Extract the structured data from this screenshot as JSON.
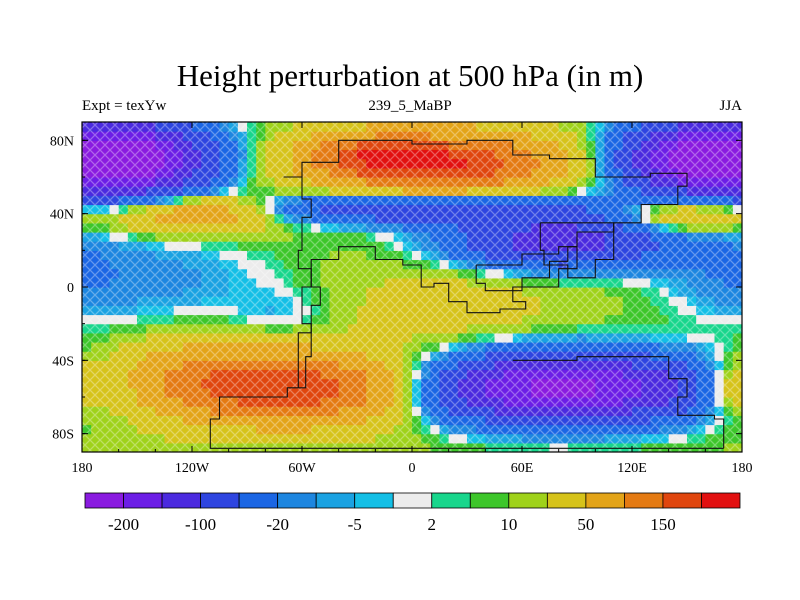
{
  "figure": {
    "title": "Height perturbation at 500 hPa (in m)",
    "left_label": "Expt = texYw",
    "center_label": "239_5_MaBP",
    "right_label": "JJA"
  },
  "axes": {
    "x_range": [
      -180,
      180
    ],
    "y_range": [
      -90,
      90
    ],
    "x_ticks": [
      {
        "value": -180,
        "label": "180"
      },
      {
        "value": -120,
        "label": "120W"
      },
      {
        "value": -60,
        "label": "60W"
      },
      {
        "value": 0,
        "label": "0"
      },
      {
        "value": 60,
        "label": "60E"
      },
      {
        "value": 120,
        "label": "120E"
      },
      {
        "value": 180,
        "label": "180"
      }
    ],
    "y_ticks": [
      {
        "value": 80,
        "label": "80N"
      },
      {
        "value": 40,
        "label": "40N"
      },
      {
        "value": 0,
        "label": "0"
      },
      {
        "value": -40,
        "label": "40S"
      },
      {
        "value": -80,
        "label": "80S"
      }
    ]
  },
  "colorbar": {
    "colors": [
      "#8a1be0",
      "#6c1ee6",
      "#4b2adf",
      "#2e45e0",
      "#1b66e4",
      "#1d86e0",
      "#1aa2e2",
      "#14bfe6",
      "#ececec",
      "#18d68c",
      "#3dc62a",
      "#9fd21a",
      "#d6c31a",
      "#e3a418",
      "#e47a12",
      "#e0460e",
      "#e21010"
    ],
    "labels": [
      {
        "after_box": 1,
        "text": "-200"
      },
      {
        "after_box": 3,
        "text": "-100"
      },
      {
        "after_box": 5,
        "text": "-20"
      },
      {
        "after_box": 7,
        "text": "-5"
      },
      {
        "after_box": 9,
        "text": "2"
      },
      {
        "after_box": 11,
        "text": "10"
      },
      {
        "after_box": 13,
        "text": "50"
      },
      {
        "after_box": 15,
        "text": "150"
      }
    ]
  },
  "field": {
    "units": "m",
    "background_value": 12,
    "anomalies": [
      {
        "lon": -150,
        "lat": 70,
        "amp": -250,
        "slon": 28,
        "slat": 14
      },
      {
        "lon": 155,
        "lat": 70,
        "amp": -250,
        "slon": 28,
        "slat": 14
      },
      {
        "lon": 15,
        "lat": 68,
        "amp": 200,
        "slon": 42,
        "slat": 11
      },
      {
        "lon": -30,
        "lat": 72,
        "amp": 80,
        "slon": 20,
        "slat": 8
      },
      {
        "lon": -120,
        "lat": 40,
        "amp": 90,
        "slon": 28,
        "slat": 7
      },
      {
        "lon": 150,
        "lat": 40,
        "amp": 70,
        "slon": 25,
        "slat": 7
      },
      {
        "lon": 10,
        "lat": 43,
        "amp": -110,
        "slon": 60,
        "slat": 6
      },
      {
        "lon": 80,
        "lat": 25,
        "amp": -140,
        "slon": 40,
        "slat": 10
      },
      {
        "lon": -140,
        "lat": 5,
        "amp": -25,
        "slon": 45,
        "slat": 18
      },
      {
        "lon": 170,
        "lat": 10,
        "amp": -20,
        "slon": 25,
        "slat": 18
      },
      {
        "lon": -70,
        "lat": -15,
        "amp": -15,
        "slon": 20,
        "slat": 10
      },
      {
        "lon": -60,
        "lat": -55,
        "amp": 180,
        "slon": 45,
        "slat": 13
      },
      {
        "lon": -120,
        "lat": -50,
        "amp": 60,
        "slon": 30,
        "slat": 14
      },
      {
        "lon": 80,
        "lat": -55,
        "amp": -230,
        "slon": 55,
        "slat": 13
      },
      {
        "lon": 175,
        "lat": -55,
        "amp": 60,
        "slon": 12,
        "slat": 10
      },
      {
        "lon": 20,
        "lat": -10,
        "amp": 20,
        "slon": 40,
        "slat": 15
      }
    ]
  },
  "coastlines": [
    {
      "name": "north-landmass",
      "points": [
        [
          -70,
          60
        ],
        [
          -60,
          68
        ],
        [
          -40,
          80
        ],
        [
          -15,
          80
        ],
        [
          0,
          78
        ],
        [
          30,
          80
        ],
        [
          55,
          72
        ],
        [
          75,
          70
        ],
        [
          100,
          60
        ],
        [
          130,
          62
        ],
        [
          150,
          55
        ],
        [
          145,
          45
        ],
        [
          125,
          35
        ],
        [
          110,
          30
        ],
        [
          90,
          22
        ],
        [
          85,
          14
        ],
        [
          75,
          5
        ],
        [
          60,
          0
        ],
        [
          55,
          -8
        ],
        [
          62,
          -12
        ],
        [
          48,
          -14
        ],
        [
          30,
          -8
        ],
        [
          20,
          2
        ],
        [
          12,
          0
        ],
        [
          5,
          12
        ],
        [
          -5,
          15
        ],
        [
          -20,
          22
        ],
        [
          -40,
          15
        ],
        [
          -55,
          0
        ],
        [
          -60,
          -20
        ],
        [
          -55,
          -38
        ],
        [
          -58,
          -55
        ],
        [
          -68,
          -60
        ],
        [
          -105,
          -72
        ],
        [
          -110,
          -88
        ],
        [
          170,
          -88
        ]
      ]
    },
    {
      "name": "pacific-margin",
      "points": [
        [
          -70,
          60
        ],
        [
          -60,
          48
        ],
        [
          -55,
          38
        ],
        [
          -60,
          20
        ],
        [
          -62,
          10
        ],
        [
          -55,
          0
        ],
        [
          -50,
          -10
        ],
        [
          -55,
          -25
        ],
        [
          -62,
          -45
        ],
        [
          -62,
          -55
        ]
      ]
    },
    {
      "name": "southern-landmass",
      "points": [
        [
          55,
          -40
        ],
        [
          90,
          -38
        ],
        [
          130,
          -38
        ],
        [
          140,
          -50
        ],
        [
          150,
          -60
        ],
        [
          145,
          -70
        ],
        [
          165,
          -72
        ],
        [
          170,
          -88
        ]
      ]
    },
    {
      "name": "inland-basin",
      "points": [
        [
          35,
          12
        ],
        [
          60,
          18
        ],
        [
          80,
          22
        ],
        [
          90,
          10
        ],
        [
          80,
          0
        ],
        [
          60,
          -2
        ],
        [
          40,
          2
        ],
        [
          35,
          12
        ]
      ]
    },
    {
      "name": "eastern-basin",
      "points": [
        [
          70,
          35
        ],
        [
          100,
          35
        ],
        [
          110,
          15
        ],
        [
          100,
          5
        ],
        [
          85,
          12
        ],
        [
          72,
          20
        ],
        [
          70,
          35
        ]
      ]
    }
  ]
}
